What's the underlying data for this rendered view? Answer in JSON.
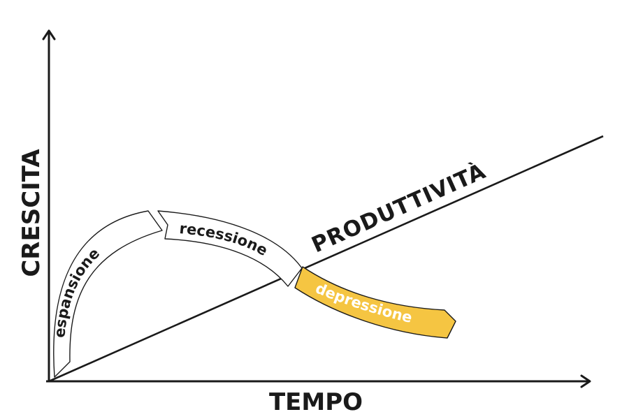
{
  "axes": {
    "y_title": "CRESCITA",
    "x_title": "TEMPO"
  },
  "trend": {
    "label": "PRODUTTIVITÀ"
  },
  "phases": [
    {
      "id": "espansione",
      "label": "espansione",
      "fill": "#ffffff",
      "text_color": "#1a1a1a"
    },
    {
      "id": "recessione",
      "label": "recessione",
      "fill": "#ffffff",
      "text_color": "#1a1a1a"
    },
    {
      "id": "depressione",
      "label": "depressione",
      "fill": "#f5c542",
      "text_color": "#ffffff"
    }
  ],
  "colors": {
    "ink": "#1a1a1a",
    "accent": "#f5c542",
    "background": "#ffffff"
  }
}
